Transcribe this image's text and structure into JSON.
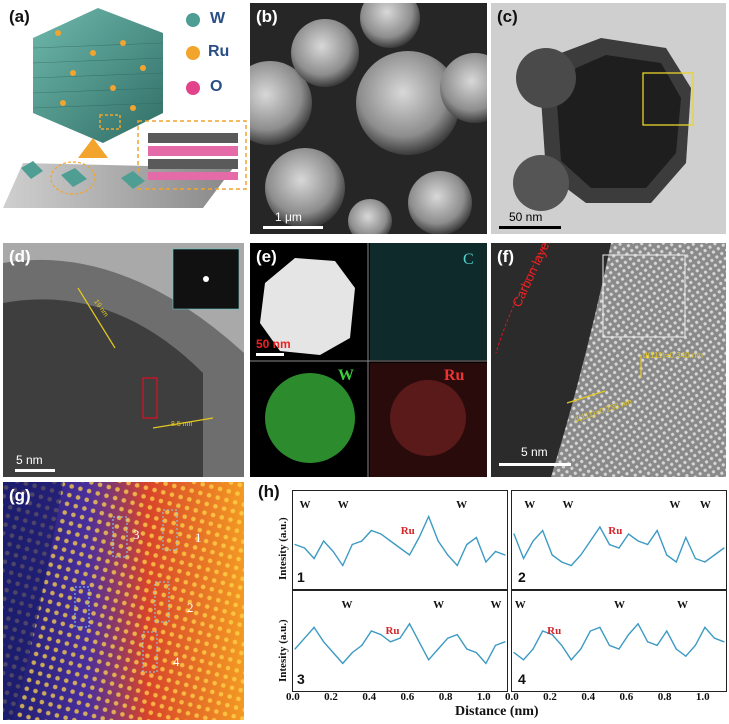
{
  "panels": {
    "a": {
      "label": "(a)",
      "legend": [
        {
          "name": "W",
          "color": "#4f9e93"
        },
        {
          "name": "Ru",
          "color": "#f2a42d"
        },
        {
          "name": "O",
          "color": "#e2438b"
        }
      ]
    },
    "b": {
      "label": "(b)",
      "scale": "1 μm"
    },
    "c": {
      "label": "(c)",
      "scale": "50 nm"
    },
    "d": {
      "label": "(d)",
      "scale": "5 nm",
      "thick1": "19 nm",
      "thick2": "8.5 nm"
    },
    "e": {
      "label": "(e)",
      "scale": "50 nm",
      "maps": [
        "C",
        "W",
        "Ru"
      ]
    },
    "f": {
      "label": "(f)",
      "scale": "5 nm",
      "carbon": "Carbon layer",
      "d1": "d(111)=0.340 nm",
      "d2": "d(111)=0.238 nm"
    },
    "g": {
      "label": "(g)",
      "marks": [
        "1",
        "2",
        "3",
        "4"
      ]
    },
    "h": {
      "label": "(h)"
    }
  },
  "chart_data": [
    {
      "type": "line",
      "panel": "1",
      "x": [
        0,
        0.05,
        0.1,
        0.15,
        0.2,
        0.25,
        0.3,
        0.35,
        0.4,
        0.45,
        0.5,
        0.55,
        0.6,
        0.65,
        0.7,
        0.75,
        0.8,
        0.85,
        0.9,
        0.95,
        1.0,
        1.05,
        1.1
      ],
      "y": [
        0.55,
        0.5,
        0.35,
        0.6,
        0.45,
        0.25,
        0.55,
        0.6,
        0.75,
        0.7,
        0.6,
        0.5,
        0.4,
        0.65,
        0.95,
        0.6,
        0.4,
        0.25,
        0.55,
        0.65,
        0.3,
        0.45,
        0.4
      ],
      "annotations": [
        {
          "text": "W",
          "x": 0.05
        },
        {
          "text": "W",
          "x": 0.25
        },
        {
          "text": "Ru",
          "x": 0.58
        },
        {
          "text": "W",
          "x": 0.87
        }
      ],
      "xlim": [
        0,
        1.1
      ],
      "ylabel": "Intesity (a.u.)"
    },
    {
      "type": "line",
      "panel": "2",
      "x": [
        0,
        0.05,
        0.1,
        0.15,
        0.2,
        0.25,
        0.3,
        0.35,
        0.4,
        0.45,
        0.5,
        0.55,
        0.6,
        0.65,
        0.7,
        0.75,
        0.8,
        0.85,
        0.9,
        0.95,
        1.0,
        1.05,
        1.1
      ],
      "y": [
        0.7,
        0.35,
        0.6,
        0.75,
        0.4,
        0.3,
        0.25,
        0.4,
        0.6,
        0.8,
        0.55,
        0.5,
        0.7,
        0.6,
        0.55,
        0.75,
        0.4,
        0.3,
        0.65,
        0.35,
        0.3,
        0.4,
        0.5
      ],
      "annotations": [
        {
          "text": "W",
          "x": 0.08
        },
        {
          "text": "W",
          "x": 0.28
        },
        {
          "text": "Ru",
          "x": 0.52
        },
        {
          "text": "W",
          "x": 0.84
        },
        {
          "text": "W",
          "x": 1.0
        }
      ],
      "xlim": [
        0,
        1.1
      ]
    },
    {
      "type": "line",
      "panel": "3",
      "x": [
        0,
        0.05,
        0.1,
        0.15,
        0.2,
        0.25,
        0.3,
        0.35,
        0.4,
        0.45,
        0.5,
        0.55,
        0.6,
        0.65,
        0.7,
        0.75,
        0.8,
        0.85,
        0.9,
        0.95,
        1.0,
        1.05,
        1.1
      ],
      "y": [
        0.5,
        0.65,
        0.8,
        0.6,
        0.45,
        0.3,
        0.45,
        0.55,
        0.75,
        0.7,
        0.6,
        0.65,
        0.85,
        0.6,
        0.35,
        0.5,
        0.65,
        0.7,
        0.5,
        0.45,
        0.3,
        0.55,
        0.6
      ],
      "annotations": [
        {
          "text": "W",
          "x": 0.27
        },
        {
          "text": "Ru",
          "x": 0.5
        },
        {
          "text": "W",
          "x": 0.75
        },
        {
          "text": "W",
          "x": 1.05
        }
      ],
      "xlim": [
        0,
        1.1
      ],
      "ylabel": "Intesity (a.u.)"
    },
    {
      "type": "line",
      "panel": "4",
      "x": [
        0,
        0.05,
        0.1,
        0.15,
        0.2,
        0.25,
        0.3,
        0.35,
        0.4,
        0.45,
        0.5,
        0.55,
        0.6,
        0.65,
        0.7,
        0.75,
        0.8,
        0.85,
        0.9,
        0.95,
        1.0,
        1.05,
        1.1
      ],
      "y": [
        0.45,
        0.35,
        0.5,
        0.75,
        0.7,
        0.55,
        0.35,
        0.5,
        0.75,
        0.8,
        0.55,
        0.5,
        0.7,
        0.85,
        0.6,
        0.55,
        0.75,
        0.5,
        0.4,
        0.55,
        0.8,
        0.65,
        0.6
      ],
      "annotations": [
        {
          "text": "W",
          "x": 0.03
        },
        {
          "text": "Ru",
          "x": 0.2
        },
        {
          "text": "W",
          "x": 0.55
        },
        {
          "text": "W",
          "x": 0.88
        }
      ],
      "xlim": [
        0,
        1.1
      ]
    }
  ],
  "axes": {
    "xticks": [
      "0.0",
      "0.2",
      "0.4",
      "0.6",
      "0.8",
      "1.0"
    ],
    "xlabel": "Distance (nm)"
  }
}
